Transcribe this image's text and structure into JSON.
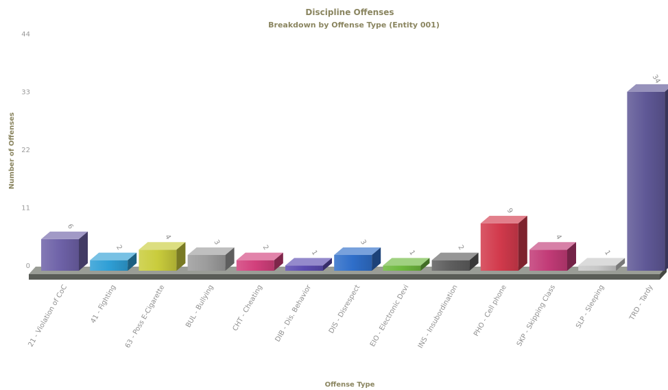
{
  "chart_data": {
    "type": "bar",
    "title": "Discipline Offenses",
    "subtitle": "Breakdown by Offense Type (Entity 001)",
    "xlabel": "Offense Type",
    "ylabel": "Number of Offenses",
    "ylim": [
      0,
      44
    ],
    "yticks": [
      "0",
      "11",
      "22",
      "33",
      "44"
    ],
    "grid": false,
    "legend": "none",
    "categories": [
      "21 - Violation of CoC",
      "41 - Fighting",
      "63 - Poss E-Cigarette",
      "BUL - Bullying",
      "CHT - Cheating",
      "DIB - Dis. Behavior",
      "DIS - Disrespect",
      "EIO - Electronic Devi",
      "INS - Insubordination",
      "PHO - Cell phone",
      "SKP - Skipping Class",
      "SLP - Sleeping",
      "TRD - Tardy"
    ],
    "values": [
      6,
      2,
      4,
      3,
      2,
      1,
      3,
      1,
      2,
      9,
      4,
      1,
      34
    ],
    "colors": [
      "#6e62a8",
      "#2f9fd6",
      "#c9cc3c",
      "#9c9c9c",
      "#d2407c",
      "#5b4bb0",
      "#2f6ec9",
      "#6db83d",
      "#5e5e5e",
      "#d23a4c",
      "#c23b77",
      "#c8c8c8",
      "#5f5896"
    ]
  }
}
